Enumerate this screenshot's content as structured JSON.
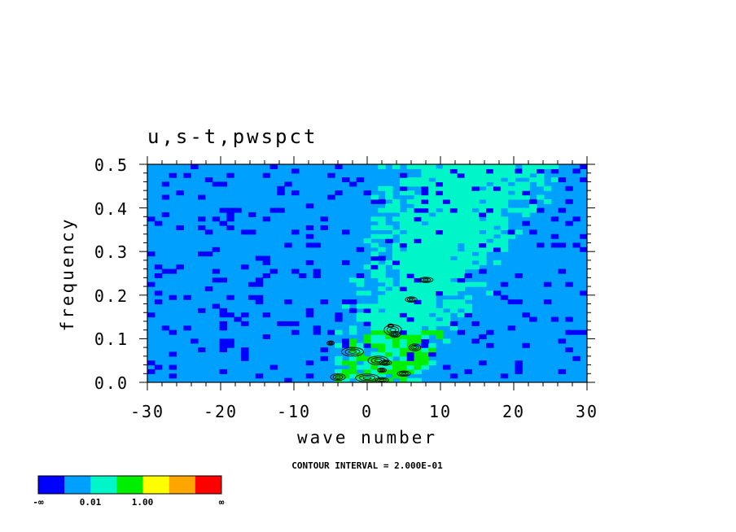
{
  "chart_data": {
    "type": "heatmap",
    "title": "u,s-t,pwspct",
    "xlabel": "wave number",
    "ylabel": "frequency",
    "xlim": [
      -30,
      30
    ],
    "ylim": [
      0.0,
      0.5
    ],
    "x_ticks": [
      "-30",
      "-20",
      "-10",
      "0",
      "10",
      "20",
      "30"
    ],
    "y_ticks": [
      "0.0",
      "0.1",
      "0.2",
      "0.3",
      "0.4",
      "0.5"
    ],
    "annotation": "CONTOUR INTERVAL = 2.000E-01",
    "colorbar": {
      "colors": [
        "#0000ff",
        "#00a0ff",
        "#00f5c8",
        "#00ee00",
        "#ffff00",
        "#ffa500",
        "#ff0000"
      ],
      "labels": [
        "-∞",
        "0.01",
        "1.00",
        "∞"
      ]
    },
    "pattern": {
      "background_level": 1,
      "ridge": "power enhanced (green) along a band from wave number ~0 at frequency 0.0 to ~+15 at frequency 0.5",
      "peak_region": "black contour clusters near wave number 0 to +8, frequency 0.0 to 0.24"
    }
  }
}
